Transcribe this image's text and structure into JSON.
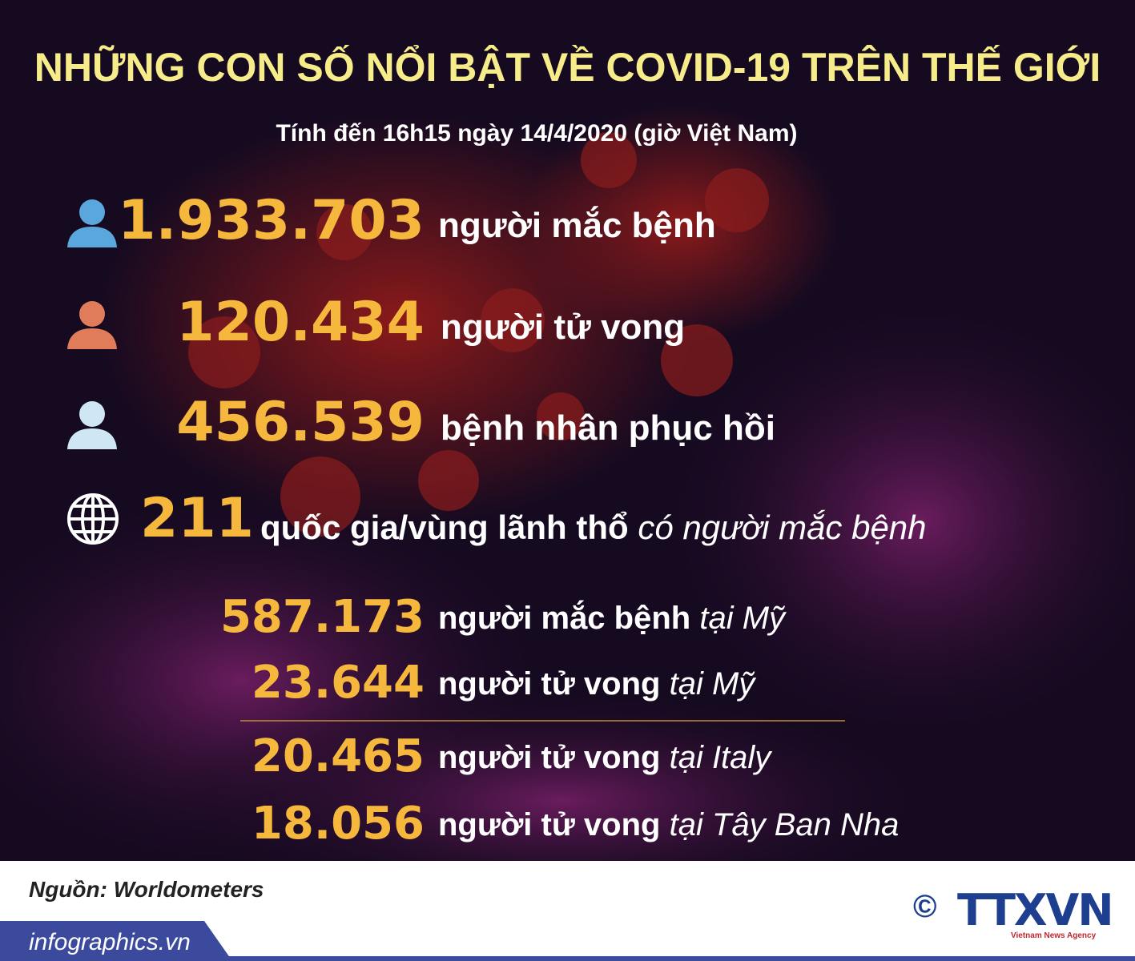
{
  "header": {
    "title": "NHỮNG CON SỐ NỔI BẬT VỀ COVID-19 TRÊN THẾ GIỚI",
    "subtitle": "Tính đến 16h15 ngày 14/4/2020 (giờ Việt Nam)"
  },
  "world_stats": [
    {
      "number": "1.933.703",
      "label": "người mắc bệnh"
    },
    {
      "number": "120.434",
      "label": "người tử vong"
    },
    {
      "number": "456.539",
      "label": "bệnh nhân phục hồi"
    },
    {
      "number": "211",
      "label": "quốc gia/vùng lãnh thổ",
      "note": "có người mắc bệnh"
    }
  ],
  "country_stats": [
    {
      "number": "587.173",
      "label": "người mắc bệnh",
      "note": "tại Mỹ"
    },
    {
      "number": "23.644",
      "label": "người tử vong",
      "note": "tại Mỹ"
    },
    {
      "number": "20.465",
      "label": "người tử vong",
      "note": "tại Italy"
    },
    {
      "number": "18.056",
      "label": "người tử vong",
      "note": "tại Tây Ban Nha"
    }
  ],
  "footer": {
    "source": "Nguồn: Worldometers",
    "website": "infographics.vn",
    "copyright": "©",
    "logo": "TTXVN",
    "logo_subtitle": "Vietnam News Agency"
  }
}
